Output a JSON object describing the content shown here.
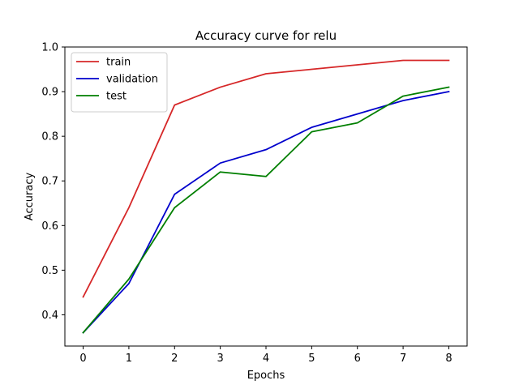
{
  "chart_data": {
    "type": "line",
    "title": "Accuracy curve for relu",
    "xlabel": "Epochs",
    "ylabel": "Accuracy",
    "x": [
      0,
      1,
      2,
      3,
      4,
      5,
      6,
      7,
      8
    ],
    "xticks": [
      "0",
      "1",
      "2",
      "3",
      "4",
      "5",
      "6",
      "7",
      "8"
    ],
    "yticks": [
      "0.4",
      "0.5",
      "0.6",
      "0.7",
      "0.8",
      "0.9",
      "1.0"
    ],
    "xlim": [
      -0.4,
      8.4
    ],
    "ylim": [
      0.33,
      1.0
    ],
    "grid": false,
    "legend_position": "top-left",
    "series": [
      {
        "name": "train",
        "color": "#d62728",
        "values": [
          0.44,
          0.64,
          0.87,
          0.91,
          0.94,
          0.95,
          0.96,
          0.97,
          0.97
        ]
      },
      {
        "name": "validation",
        "color": "#0000cc",
        "values": [
          0.36,
          0.47,
          0.67,
          0.74,
          0.77,
          0.82,
          0.85,
          0.88,
          0.9
        ]
      },
      {
        "name": "test",
        "color": "#007f00",
        "values": [
          0.36,
          0.48,
          0.64,
          0.72,
          0.71,
          0.81,
          0.83,
          0.89,
          0.91
        ]
      }
    ]
  }
}
